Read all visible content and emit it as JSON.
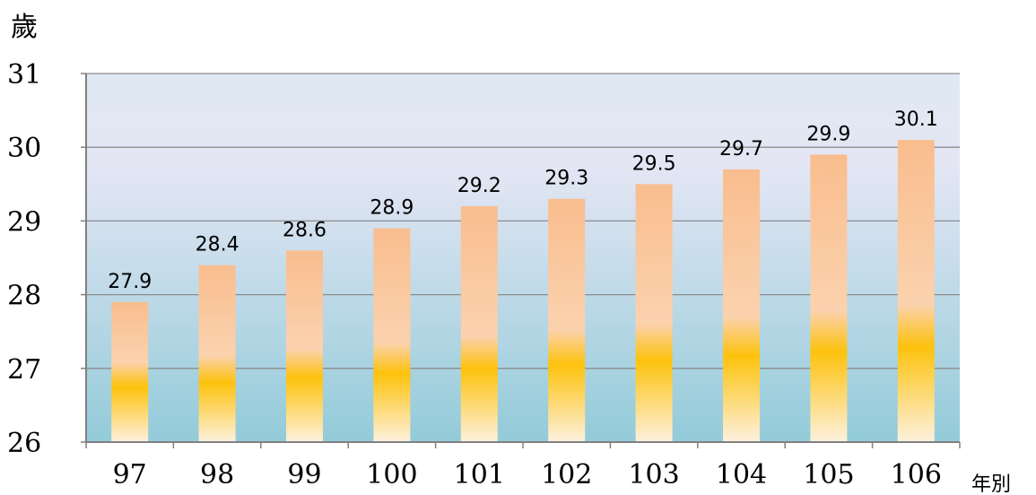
{
  "chart_data": {
    "type": "bar",
    "ylabel": "歲",
    "xlabel": "年別",
    "categories": [
      "97",
      "98",
      "99",
      "100",
      "101",
      "102",
      "103",
      "104",
      "105",
      "106"
    ],
    "values": [
      27.9,
      28.4,
      28.6,
      28.9,
      29.2,
      29.3,
      29.5,
      29.7,
      29.9,
      30.1
    ],
    "data_labels": [
      "27.9",
      "28.4",
      "28.6",
      "28.9",
      "29.2",
      "29.3",
      "29.5",
      "29.7",
      "29.9",
      "30.1"
    ],
    "ylim": [
      26,
      31
    ],
    "yticks": [
      "26",
      "27",
      "28",
      "29",
      "30",
      "31"
    ],
    "grid": true,
    "legend": "none",
    "colors": {
      "plot_top": "#dfe9f3",
      "plot_bottom": "#93cbd9",
      "bar_top": "#f9bd8e",
      "bar_mid": "#fbd2ae",
      "bar_gold": "#fdc20d",
      "bar_bottom": "#fdf1df",
      "axis": "#808080",
      "grid": "#8c8c8c"
    }
  }
}
